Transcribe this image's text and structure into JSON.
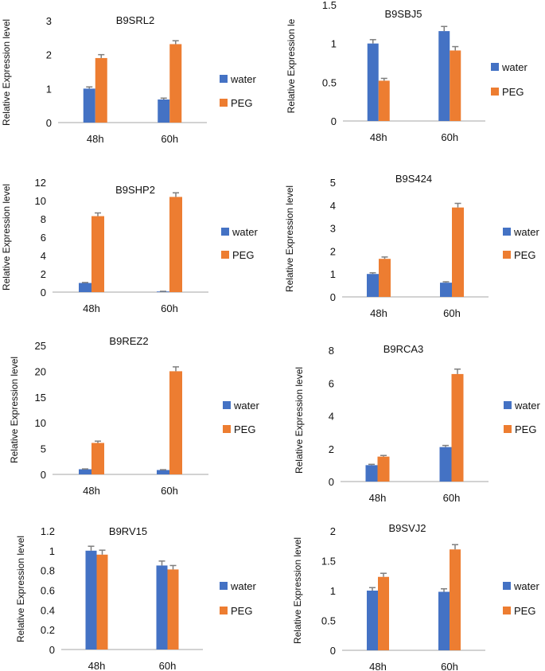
{
  "colors": {
    "water": "#4472c4",
    "peg": "#ed7d31",
    "error_bar": "#7f7f7f",
    "axis": "#a6a6a6",
    "text": "#111111"
  },
  "chart_data": [
    {
      "type": "bar",
      "title": "B9SRL2",
      "ylabel": "Relative Expression level",
      "categories": [
        "48h",
        "60h"
      ],
      "ylim": [
        0,
        3
      ],
      "yticks": [
        "0",
        "1",
        "2",
        "3"
      ],
      "series": [
        {
          "name": "water",
          "values": [
            1.0,
            0.68
          ],
          "errors": [
            0.05,
            0.04
          ]
        },
        {
          "name": "PEG",
          "values": [
            1.9,
            2.31
          ],
          "errors": [
            0.1,
            0.1
          ]
        }
      ]
    },
    {
      "type": "bar",
      "title": "B9SBJ5",
      "ylabel": "Relative Expression le",
      "categories": [
        "48h",
        "60h"
      ],
      "ylim": [
        0,
        1.5
      ],
      "yticks": [
        "0",
        "0.5",
        "1",
        "1.5"
      ],
      "series": [
        {
          "name": "water",
          "values": [
            1.0,
            1.16
          ],
          "errors": [
            0.05,
            0.06
          ]
        },
        {
          "name": "PEG",
          "values": [
            0.52,
            0.91
          ],
          "errors": [
            0.03,
            0.05
          ]
        }
      ]
    },
    {
      "type": "bar",
      "title": "B9SHP2",
      "ylabel": "Relative Expression level",
      "categories": [
        "48h",
        "60h"
      ],
      "ylim": [
        0,
        12
      ],
      "yticks": [
        "0",
        "2",
        "4",
        "6",
        "8",
        "10",
        "12"
      ],
      "series": [
        {
          "name": "water",
          "values": [
            1.0,
            0.07
          ],
          "errors": [
            0.05,
            0.02
          ]
        },
        {
          "name": "PEG",
          "values": [
            8.3,
            10.4
          ],
          "errors": [
            0.35,
            0.45
          ]
        }
      ]
    },
    {
      "type": "bar",
      "title": "B9S424",
      "ylabel": "Relative Expression level",
      "categories": [
        "48h",
        "60h"
      ],
      "ylim": [
        0,
        5
      ],
      "yticks": [
        "0",
        "1",
        "2",
        "3",
        "4",
        "5"
      ],
      "series": [
        {
          "name": "water",
          "values": [
            1.0,
            0.62
          ],
          "errors": [
            0.05,
            0.04
          ]
        },
        {
          "name": "PEG",
          "values": [
            1.66,
            3.9
          ],
          "errors": [
            0.08,
            0.18
          ]
        }
      ]
    },
    {
      "type": "bar",
      "title": "B9REZ2",
      "ylabel": "Relative Expression level",
      "categories": [
        "48h",
        "60h"
      ],
      "ylim": [
        0,
        25
      ],
      "yticks": [
        "0",
        "5",
        "10",
        "15",
        "20",
        "25"
      ],
      "series": [
        {
          "name": "water",
          "values": [
            1.0,
            0.85
          ],
          "errors": [
            0.06,
            0.06
          ]
        },
        {
          "name": "PEG",
          "values": [
            6.1,
            20.0
          ],
          "errors": [
            0.35,
            0.85
          ]
        }
      ]
    },
    {
      "type": "bar",
      "title": "B9RCA3",
      "ylabel": "Relative Expression level",
      "categories": [
        "48h",
        "60h"
      ],
      "ylim": [
        0,
        8
      ],
      "yticks": [
        "0",
        "2",
        "4",
        "6",
        "8"
      ],
      "series": [
        {
          "name": "water",
          "values": [
            1.0,
            2.1
          ],
          "errors": [
            0.05,
            0.1
          ]
        },
        {
          "name": "PEG",
          "values": [
            1.52,
            6.55
          ],
          "errors": [
            0.07,
            0.3
          ]
        }
      ]
    },
    {
      "type": "bar",
      "title": "B9RV15",
      "ylabel": "Relative Expression level",
      "categories": [
        "48h",
        "60h"
      ],
      "ylim": [
        0,
        1.2
      ],
      "yticks": [
        "0",
        "0.2",
        "0.4",
        "0.6",
        "0.8",
        "1",
        "1.2"
      ],
      "series": [
        {
          "name": "water",
          "values": [
            1.0,
            0.85
          ],
          "errors": [
            0.045,
            0.045
          ]
        },
        {
          "name": "PEG",
          "values": [
            0.96,
            0.81
          ],
          "errors": [
            0.045,
            0.04
          ]
        }
      ]
    },
    {
      "type": "bar",
      "title": "B9SVJ2",
      "ylabel": "Relative Expression level",
      "categories": [
        "48h",
        "60h"
      ],
      "ylim": [
        0,
        2
      ],
      "yticks": [
        "0",
        "0.5",
        "1",
        "1.5",
        "2"
      ],
      "series": [
        {
          "name": "water",
          "values": [
            1.0,
            0.98
          ],
          "errors": [
            0.05,
            0.05
          ]
        },
        {
          "name": "PEG",
          "values": [
            1.23,
            1.69
          ],
          "errors": [
            0.06,
            0.08
          ]
        }
      ]
    }
  ]
}
